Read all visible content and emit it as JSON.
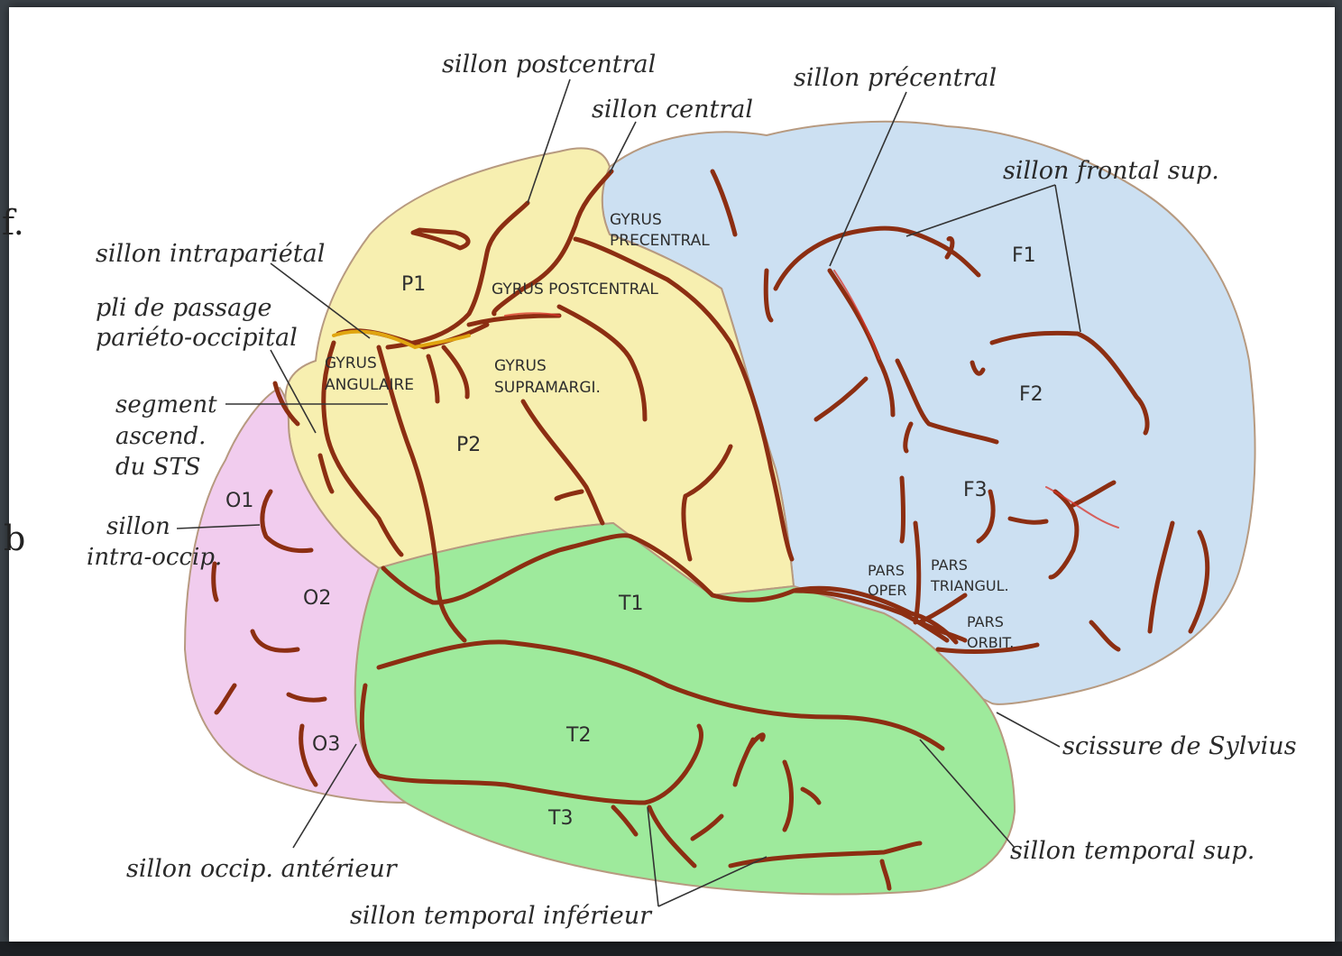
{
  "colors": {
    "frontal": "#cce0f2",
    "parietal": "#f7efb0",
    "temporal": "#9eea9c",
    "occipital": "#f1ccee",
    "sulcus": "#8c2e12"
  },
  "edge_marks": {
    "top": "f.",
    "bottom": "b"
  },
  "labels": {
    "sillon_postcentral": "sillon postcentral",
    "sillon_central": "sillon central",
    "sillon_precentral": "sillon précentral",
    "sillon_frontal_sup": "sillon frontal sup.",
    "sillon_intraparietal": "sillon intrapariétal",
    "pli_passage_1": "pli de passage",
    "pli_passage_2": "pariéto-occipital",
    "segment_1": "segment",
    "segment_2": "ascend.",
    "segment_3": "du STS",
    "sillon_intraoccip_1": "sillon",
    "sillon_intraoccip_2": "intra-occip.",
    "scissure_sylvius": "scissure de Sylvius",
    "sillon_temporal_sup": "sillon temporal sup.",
    "sillon_occip_anterieur": "sillon occip. antérieur",
    "sillon_temporal_inf": "sillon temporal inférieur"
  },
  "regions": {
    "gyrus_precentral_1": "GYRUS",
    "gyrus_precentral_2": "PRECENTRAL",
    "gyrus_postcentral": "GYRUS POSTCENTRAL",
    "gyrus_angulaire_1": "GYRUS",
    "gyrus_angulaire_2": "ANGULAIRE",
    "gyrus_supramarg_1": "GYRUS",
    "gyrus_supramarg_2": "SUPRAMARGI.",
    "pars_oper_1": "PARS",
    "pars_oper_2": "OPER",
    "pars_triangul_1": "PARS",
    "pars_triangul_2": "TRIANGUL.",
    "pars_orbit_1": "PARS",
    "pars_orbit_2": "ORBIT.",
    "F1": "F1",
    "F2": "F2",
    "F3": "F3",
    "P1": "P1",
    "P2": "P2",
    "T1": "T1",
    "T2": "T2",
    "T3": "T3",
    "O1": "O1",
    "O2": "O2",
    "O3": "O3"
  }
}
